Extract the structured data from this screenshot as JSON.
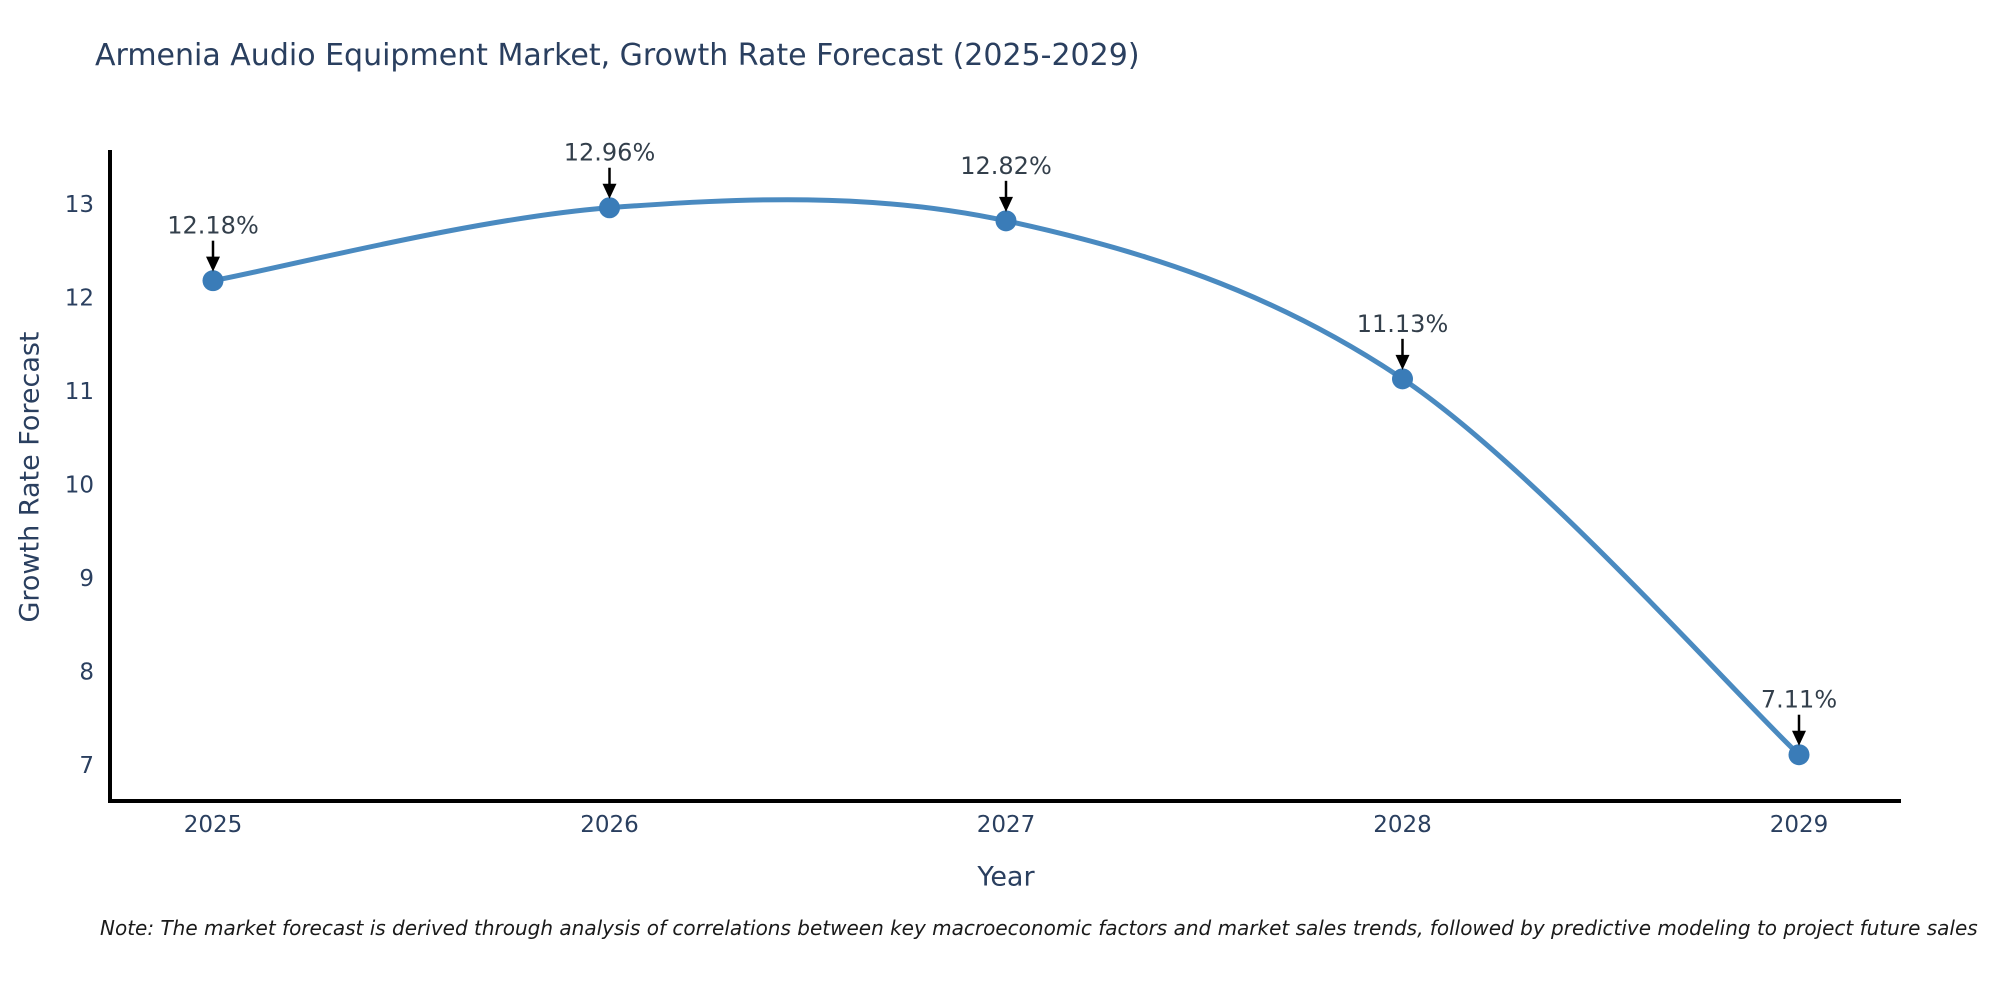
{
  "note": "Note: The market forecast is derived through analysis of correlations between key macroeconomic factors and market sales trends, followed by predictive modeling to project future sales",
  "chart_data": {
    "type": "line",
    "title": "Armenia Audio Equipment Market, Growth Rate Forecast (2025-2029)",
    "xlabel": "Year",
    "ylabel": "Growth Rate Forecast",
    "x": [
      "2025",
      "2026",
      "2027",
      "2028",
      "2029"
    ],
    "series": [
      {
        "name": "Growth Rate Forecast",
        "values": [
          12.18,
          12.96,
          12.82,
          11.13,
          7.11
        ],
        "labels": [
          "12.18%",
          "12.96%",
          "12.82%",
          "11.13%",
          "7.11%"
        ]
      }
    ],
    "yticks": [
      7,
      8,
      9,
      10,
      11,
      12,
      13
    ],
    "ylim": [
      6.6,
      13.6
    ],
    "line_shape": "spline",
    "grid": false,
    "legend_position": "none",
    "marker": "circle",
    "colors": {
      "line": "#4a8ac0",
      "marker": "#3a7cb8",
      "axis": "#000000",
      "text": "#2a3f5f",
      "annotation": "#333f4b",
      "arrow": "#000000",
      "note_text": "#1a1a1a",
      "background": "#ffffff"
    }
  }
}
